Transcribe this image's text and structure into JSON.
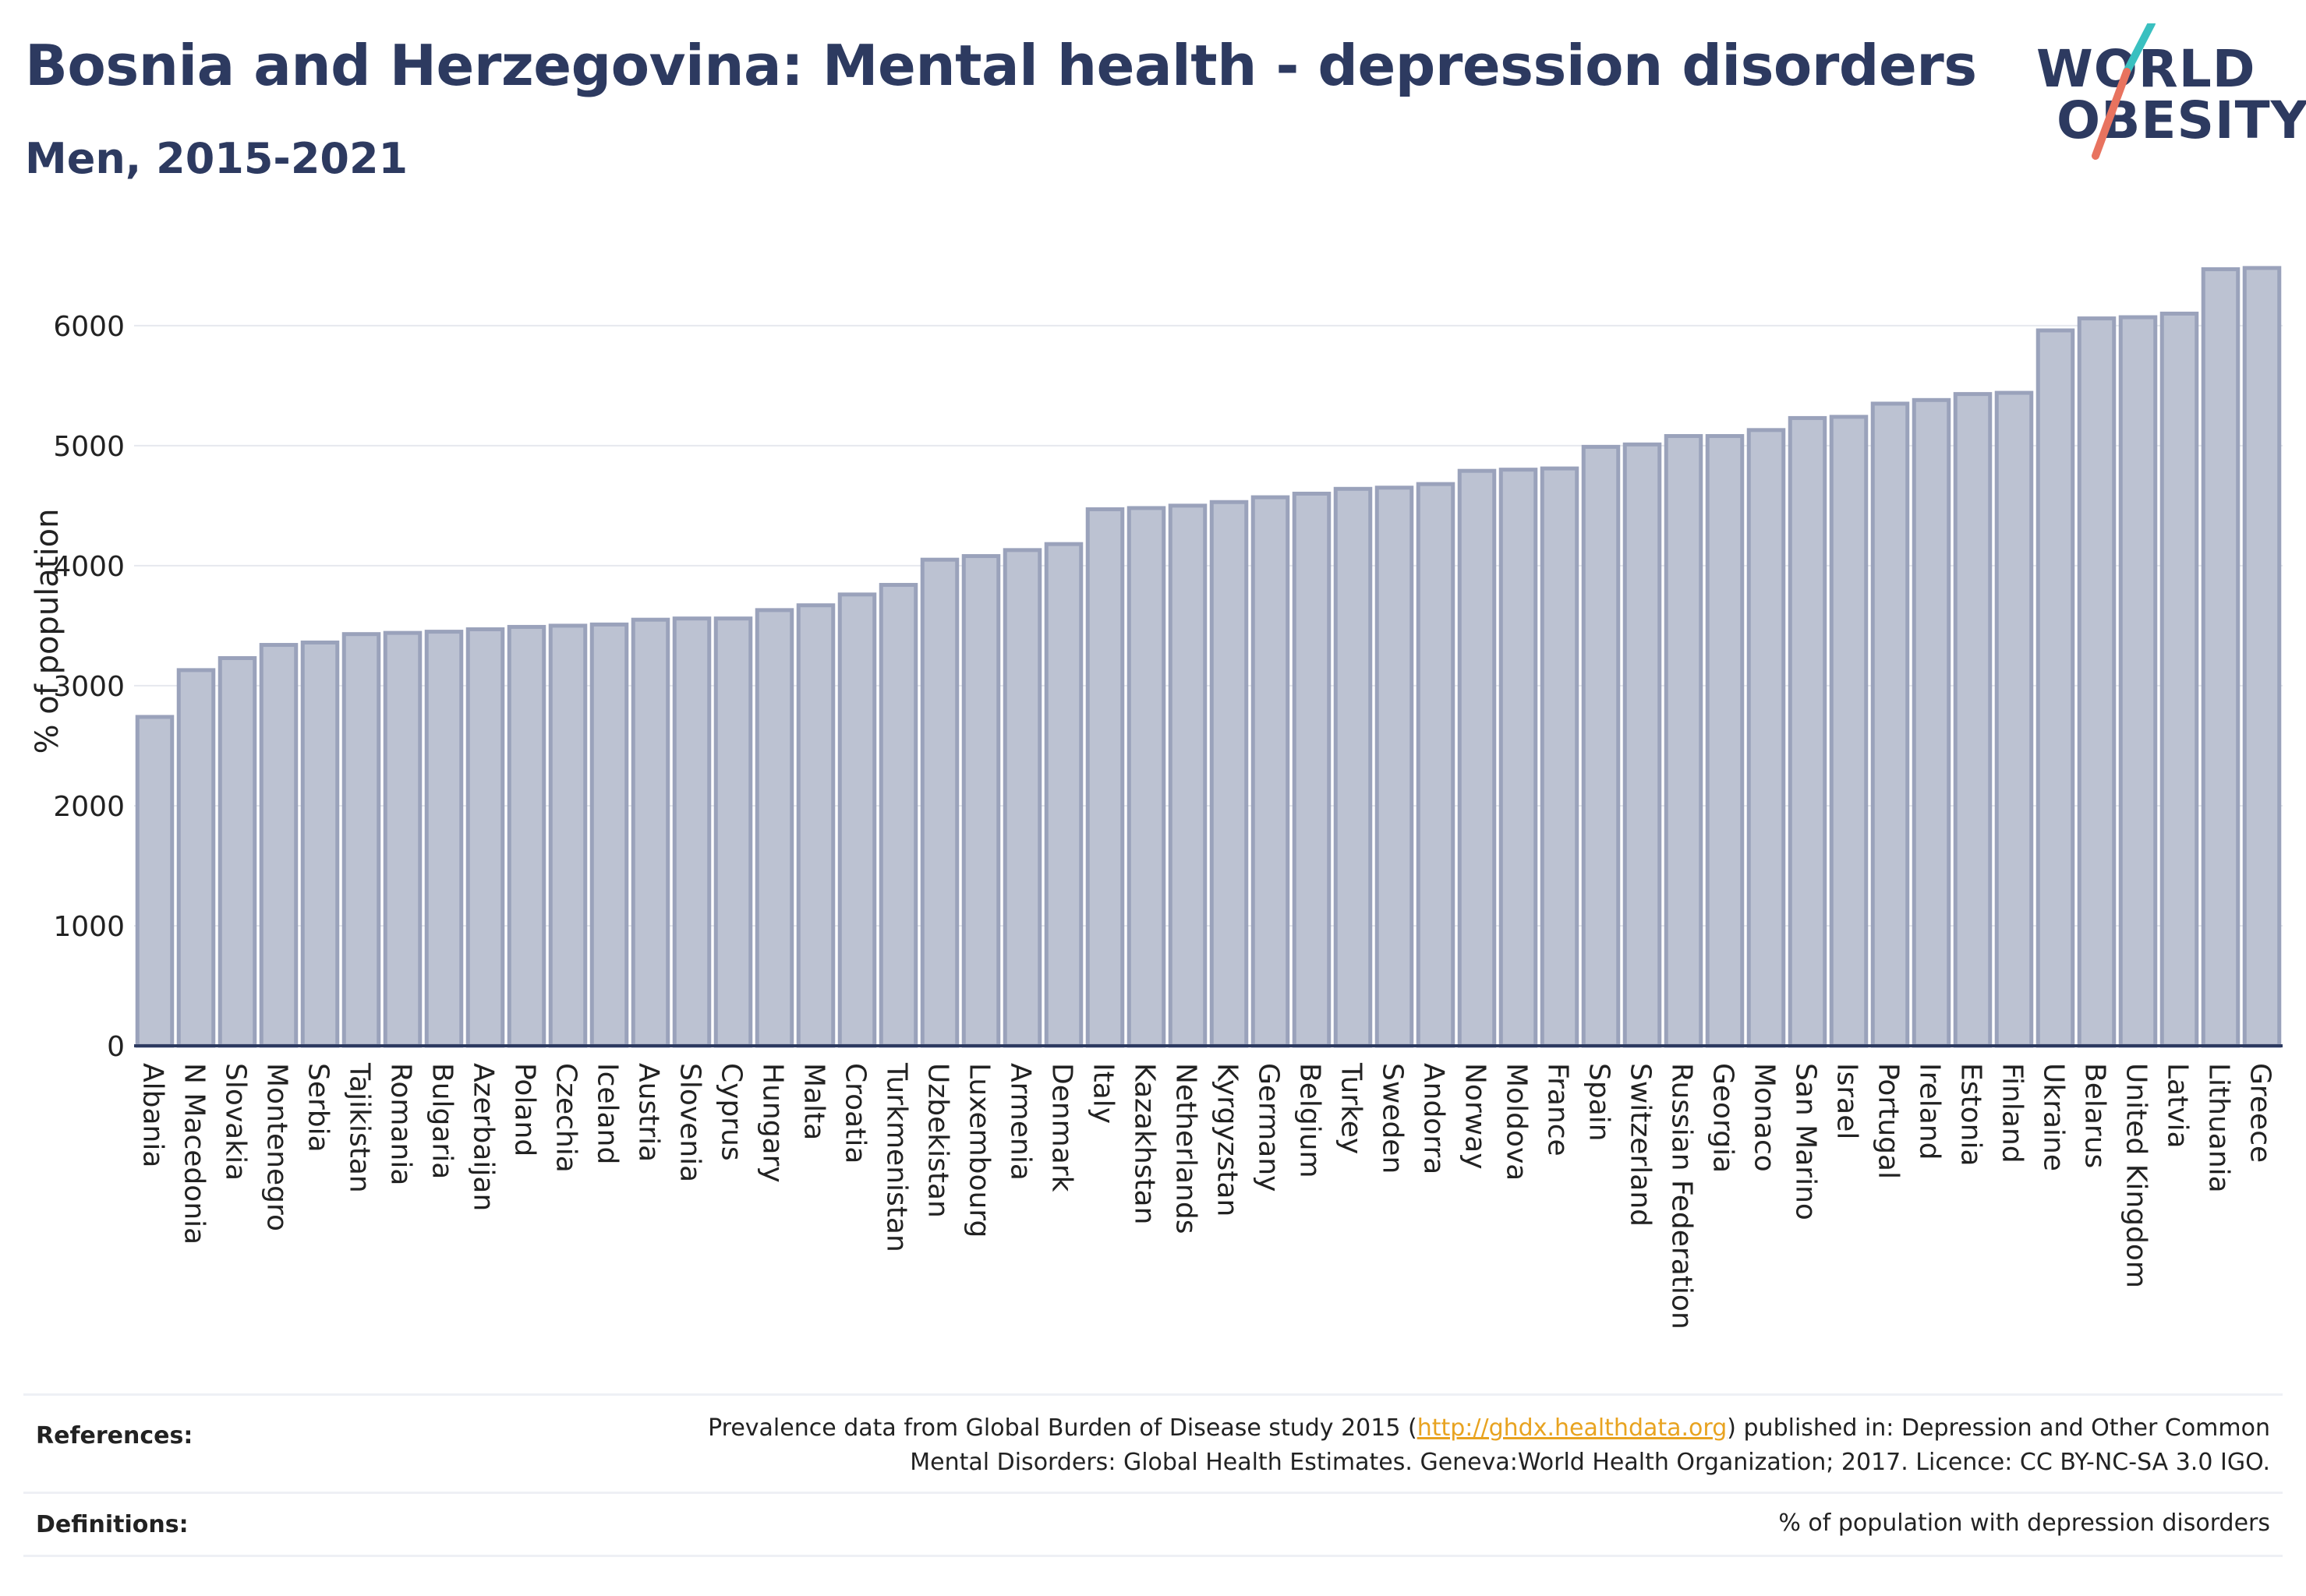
{
  "header": {
    "title": "Bosnia and Herzegovina: Mental health - depression disorders",
    "subtitle": "Men, 2015-2021"
  },
  "logo": {
    "line1": "WORLD",
    "line2": "OBESITY",
    "accent_colors": [
      "#3ac0c0",
      "#e8735f"
    ]
  },
  "colors": {
    "bar_fill": "#bcc2d2",
    "bar_stroke": "#9aa2bb",
    "axis": "#2d3a60",
    "grid": "#e6e8ee",
    "text": "#2d3a60"
  },
  "chart_data": {
    "type": "bar",
    "title": "Bosnia and Herzegovina: Mental health - depression disorders",
    "subtitle": "Men, 2015-2021",
    "xlabel": "",
    "ylabel": "% of population",
    "ylim": [
      0,
      6700
    ],
    "yticks": [
      0,
      1000,
      2000,
      3000,
      4000,
      5000,
      6000
    ],
    "grid": true,
    "categories": [
      "Albania",
      "N Macedonia",
      "Slovakia",
      "Montenegro",
      "Serbia",
      "Tajikistan",
      "Romania",
      "Bulgaria",
      "Azerbaijan",
      "Poland",
      "Czechia",
      "Iceland",
      "Austria",
      "Slovenia",
      "Cyprus",
      "Hungary",
      "Malta",
      "Croatia",
      "Turkmenistan",
      "Uzbekistan",
      "Luxembourg",
      "Armenia",
      "Denmark",
      "Italy",
      "Kazakhstan",
      "Netherlands",
      "Kyrgyzstan",
      "Germany",
      "Belgium",
      "Turkey",
      "Sweden",
      "Andorra",
      "Norway",
      "Moldova",
      "France",
      "Spain",
      "Switzerland",
      "Russian Federation",
      "Georgia",
      "Monaco",
      "San Marino",
      "Israel",
      "Portugal",
      "Ireland",
      "Estonia",
      "Finland",
      "Ukraine",
      "Belarus",
      "United Kingdom",
      "Latvia",
      "Lithuania",
      "Greece"
    ],
    "values": [
      2740,
      3130,
      3230,
      3340,
      3360,
      3430,
      3440,
      3450,
      3470,
      3490,
      3500,
      3510,
      3550,
      3560,
      3560,
      3630,
      3670,
      3760,
      3840,
      4050,
      4080,
      4130,
      4180,
      4470,
      4480,
      4500,
      4530,
      4570,
      4600,
      4640,
      4650,
      4680,
      4790,
      4800,
      4810,
      4990,
      5010,
      5080,
      5080,
      5130,
      5230,
      5240,
      5350,
      5380,
      5430,
      5440,
      5960,
      6060,
      6070,
      6100,
      6470,
      6480
    ]
  },
  "footer": {
    "references_label": "References:",
    "references_pre": "Prevalence data from Global Burden of Disease study 2015 (",
    "references_link": "http://ghdx.healthdata.org",
    "references_post": ") published in: Depression and Other Common",
    "references_line2": "Mental Disorders: Global Health Estimates. Geneva:World Health Organization; 2017. Licence: CC BY-NC-SA 3.0 IGO.",
    "definitions_label": "Definitions:",
    "definitions_text": "% of population with depression disorders"
  }
}
